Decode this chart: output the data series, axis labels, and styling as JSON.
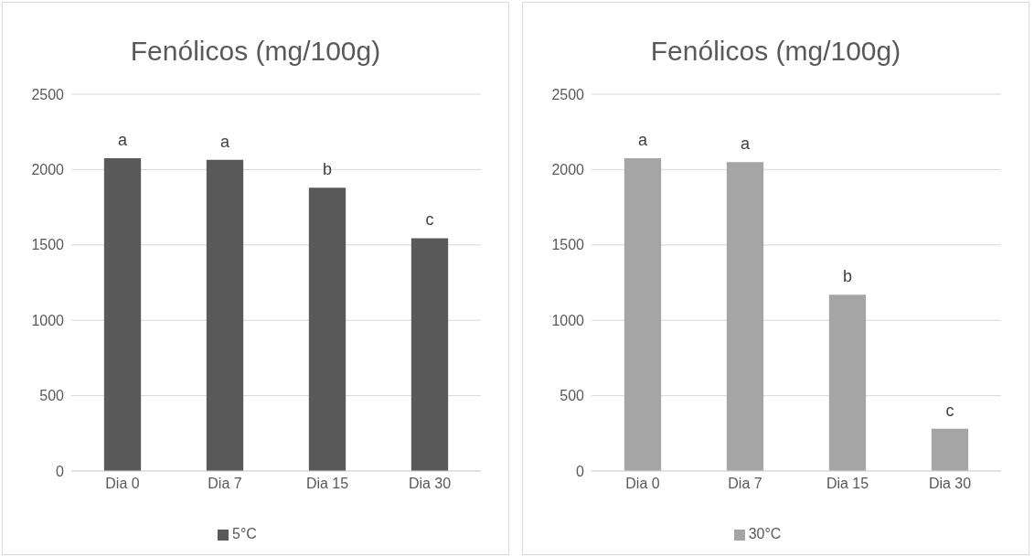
{
  "chart_data": [
    {
      "type": "bar",
      "title": "Fenólicos (mg/100g)",
      "categories": [
        "Dia 0",
        "Dia 7",
        "Dia 15",
        "Dia 30"
      ],
      "series": [
        {
          "name": "5°C",
          "color": "#595959",
          "values": [
            2075,
            2065,
            1880,
            1545
          ]
        }
      ],
      "ylim": [
        0,
        2500
      ],
      "yticks": [
        0,
        500,
        1000,
        1500,
        2000,
        2500
      ],
      "grid": "y",
      "legend": "bottom",
      "annotations": [
        {
          "text": "a",
          "x": "Dia 0",
          "y": 2075
        },
        {
          "text": "a",
          "x": "Dia 7",
          "y": 2065
        },
        {
          "text": "b",
          "x": "Dia 15",
          "y": 1880
        },
        {
          "text": "c",
          "x": "Dia 30",
          "y": 1545
        }
      ]
    },
    {
      "type": "bar",
      "title": "Fenólicos (mg/100g)",
      "categories": [
        "Dia 0",
        "Dia 7",
        "Dia 15",
        "Dia 30"
      ],
      "series": [
        {
          "name": "30°C",
          "color": "#a5a5a5",
          "values": [
            2075,
            2050,
            1170,
            280
          ]
        }
      ],
      "ylim": [
        0,
        2500
      ],
      "yticks": [
        0,
        500,
        1000,
        1500,
        2000,
        2500
      ],
      "grid": "y",
      "legend": "bottom",
      "annotations": [
        {
          "text": "a",
          "x": "Dia 0",
          "y": 2075
        },
        {
          "text": "a",
          "x": "Dia 7",
          "y": 2050
        },
        {
          "text": "b",
          "x": "Dia 15",
          "y": 1170
        },
        {
          "text": "c",
          "x": "Dia 30",
          "y": 280
        }
      ]
    }
  ]
}
